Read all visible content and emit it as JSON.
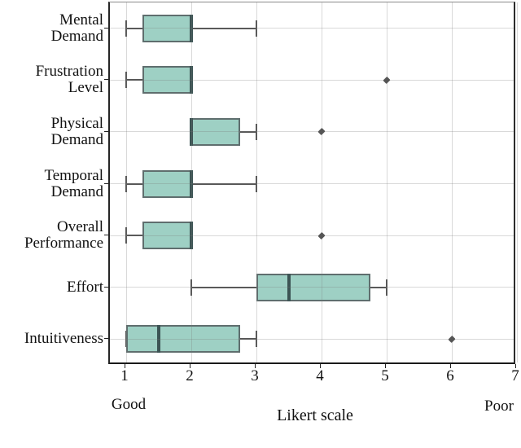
{
  "chart_data": {
    "type": "boxplot",
    "orientation": "horizontal",
    "title": "",
    "xlabel": "Likert scale",
    "x_left_annotation": "Good",
    "x_right_annotation": "Poor",
    "x_ticks": [
      1,
      2,
      3,
      4,
      5,
      6,
      7
    ],
    "xlim": [
      0.75,
      7.0
    ],
    "grid": true,
    "categories": [
      "Mental Demand",
      "Frustration Level",
      "Physical Demand",
      "Temporal Demand",
      "Overall Performance",
      "Effort",
      "Intuitiveness"
    ],
    "category_label_lines": [
      [
        "Mental",
        "Demand"
      ],
      [
        "Frustration",
        "Level"
      ],
      [
        "Physical",
        "Demand"
      ],
      [
        "Temporal",
        "Demand"
      ],
      [
        "Overall",
        "Performance"
      ],
      [
        "Effort"
      ],
      [
        "Intuitiveness"
      ]
    ],
    "series": [
      {
        "name": "Mental Demand",
        "whislo": 1.0,
        "q1": 1.25,
        "med": 2.0,
        "q3": 2.0,
        "whishi": 3.0,
        "outliers": []
      },
      {
        "name": "Frustration Level",
        "whislo": 1.0,
        "q1": 1.25,
        "med": 2.0,
        "q3": 2.0,
        "whishi": 2.0,
        "outliers": [
          5
        ]
      },
      {
        "name": "Physical Demand",
        "whislo": 2.0,
        "q1": 2.0,
        "med": 2.0,
        "q3": 2.75,
        "whishi": 3.0,
        "outliers": [
          4
        ]
      },
      {
        "name": "Temporal Demand",
        "whislo": 1.0,
        "q1": 1.25,
        "med": 2.0,
        "q3": 2.0,
        "whishi": 3.0,
        "outliers": []
      },
      {
        "name": "Overall Performance",
        "whislo": 1.0,
        "q1": 1.25,
        "med": 2.0,
        "q3": 2.0,
        "whishi": 2.0,
        "outliers": [
          4
        ]
      },
      {
        "name": "Effort",
        "whislo": 2.0,
        "q1": 3.0,
        "med": 3.5,
        "q3": 4.75,
        "whishi": 5.0,
        "outliers": []
      },
      {
        "name": "Intuitiveness",
        "whislo": 1.0,
        "q1": 1.0,
        "med": 1.5,
        "q3": 2.75,
        "whishi": 3.0,
        "outliers": [
          6
        ]
      }
    ]
  },
  "style": {
    "box_fill": "#9ed0c4",
    "box_border": "#5f6e6e",
    "median_color": "#3c5454",
    "whisker_color": "#555555",
    "outlier_color": "#555555",
    "grid_color": "#c9c9c9",
    "axis_color": "#1a1a1a",
    "text_color": "#111111",
    "background": "#ffffff"
  }
}
